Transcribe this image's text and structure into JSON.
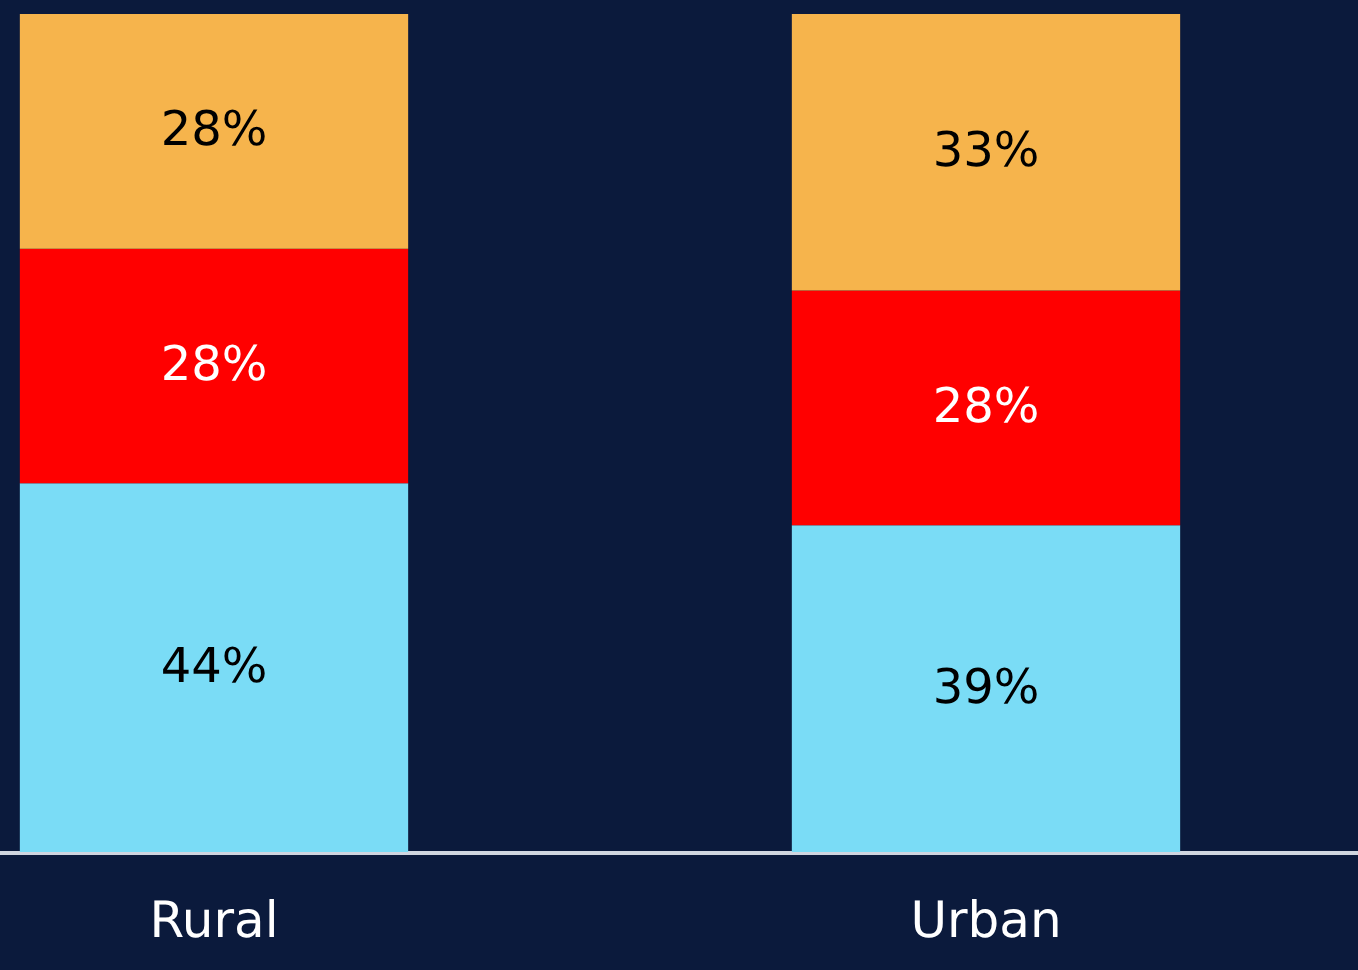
{
  "chart_data": {
    "type": "bar",
    "stacked": true,
    "data_labels": true,
    "categories": [
      "Rural",
      "Urban"
    ],
    "series": [
      {
        "color": "#7adcf6",
        "values": [
          44,
          39
        ],
        "value_labels": [
          "44%",
          "39%"
        ]
      },
      {
        "color": "#ff0000",
        "values": [
          28,
          28
        ],
        "value_labels": [
          "28%",
          "28%"
        ]
      },
      {
        "color": "#f6b44c",
        "values": [
          28,
          33
        ],
        "value_labels": [
          "28%",
          "33%"
        ]
      }
    ]
  }
}
